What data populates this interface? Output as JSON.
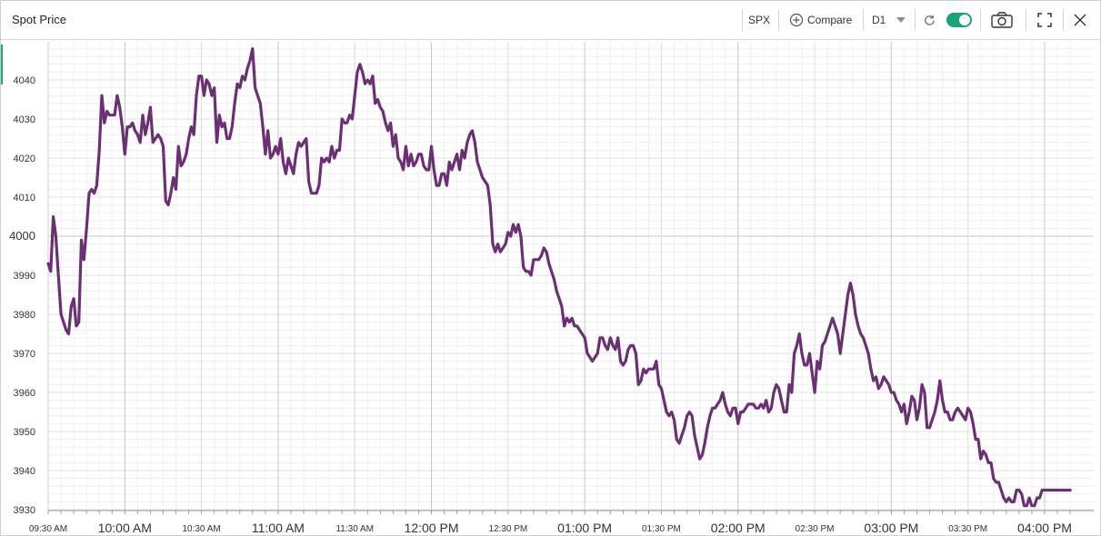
{
  "header": {
    "title": "Spot Price",
    "symbol": "SPX",
    "compare_label": "Compare",
    "period_label": "D1",
    "accent_color": "#1aa37a"
  },
  "icons": [
    "plus-circle-icon",
    "chevron-down-icon",
    "refresh-icon",
    "toggle-switch",
    "camera-icon",
    "expand-icon",
    "close-icon"
  ],
  "chart_data": {
    "type": "line",
    "title": "",
    "xlabel": "",
    "ylabel": "",
    "ylim": [
      3930,
      4048
    ],
    "xlim_minutes": [
      570,
      960
    ],
    "grid": true,
    "line_color": "#6b2f73",
    "y_ticks": [
      {
        "value": 4040,
        "label": "4040",
        "major": false
      },
      {
        "value": 4030,
        "label": "4030",
        "major": false
      },
      {
        "value": 4020,
        "label": "4020",
        "major": false
      },
      {
        "value": 4010,
        "label": "4010",
        "major": false
      },
      {
        "value": 4000,
        "label": "4000",
        "major": true
      },
      {
        "value": 3990,
        "label": "3990",
        "major": false
      },
      {
        "value": 3980,
        "label": "3980",
        "major": false
      },
      {
        "value": 3970,
        "label": "3970",
        "major": false
      },
      {
        "value": 3960,
        "label": "3960",
        "major": false
      },
      {
        "value": 3950,
        "label": "3950",
        "major": false
      },
      {
        "value": 3940,
        "label": "3940",
        "major": false
      },
      {
        "value": 3930,
        "label": "3930",
        "major": false
      }
    ],
    "x_ticks": [
      {
        "t": 570,
        "label": "09:30 AM",
        "major": false
      },
      {
        "t": 600,
        "label": "10:00 AM",
        "major": true
      },
      {
        "t": 630,
        "label": "10:30 AM",
        "major": false
      },
      {
        "t": 660,
        "label": "11:00 AM",
        "major": true
      },
      {
        "t": 690,
        "label": "11:30 AM",
        "major": false
      },
      {
        "t": 720,
        "label": "12:00 PM",
        "major": true
      },
      {
        "t": 750,
        "label": "12:30 PM",
        "major": false
      },
      {
        "t": 780,
        "label": "01:00 PM",
        "major": true
      },
      {
        "t": 810,
        "label": "01:30 PM",
        "major": false
      },
      {
        "t": 840,
        "label": "02:00 PM",
        "major": true
      },
      {
        "t": 870,
        "label": "02:30 PM",
        "major": false
      },
      {
        "t": 900,
        "label": "03:00 PM",
        "major": true
      },
      {
        "t": 930,
        "label": "03:30 PM",
        "major": false
      },
      {
        "t": 960,
        "label": "04:00 PM",
        "major": true
      }
    ],
    "series": [
      {
        "x": [
          570,
          571,
          572,
          573,
          574,
          575,
          576,
          577,
          578,
          579,
          580,
          581,
          582,
          583,
          584,
          585,
          586,
          587,
          588,
          589,
          590,
          591,
          592,
          593,
          594,
          595,
          596,
          597,
          598,
          599,
          600,
          601,
          602,
          603,
          604,
          605,
          606,
          607,
          608,
          609,
          610,
          611,
          612,
          613,
          614,
          615,
          616,
          617,
          618,
          619,
          620,
          621,
          622,
          623,
          624,
          625,
          626,
          627,
          628,
          629,
          630,
          631,
          632,
          633,
          634,
          635,
          636,
          637,
          638,
          639,
          640,
          641,
          642,
          643,
          644,
          645,
          646,
          647,
          648,
          649,
          650,
          651,
          652,
          653,
          654,
          655,
          656,
          657,
          658,
          659,
          660,
          661,
          662,
          663,
          664,
          665,
          666,
          667,
          668,
          669,
          670,
          671,
          672,
          673,
          674,
          675,
          676,
          677,
          678,
          679,
          680,
          681,
          682,
          683,
          684,
          685,
          686,
          687,
          688,
          689,
          690,
          691,
          692,
          693,
          694,
          695,
          696,
          697,
          698,
          699,
          700,
          701,
          702,
          703,
          704,
          705,
          706,
          707,
          708,
          709,
          710,
          711,
          712,
          713,
          714,
          715,
          716,
          717,
          718,
          719,
          720,
          721,
          722,
          723,
          724,
          725,
          726,
          727,
          728,
          729,
          730,
          731,
          732,
          733,
          734,
          735,
          736,
          737,
          738,
          739,
          740,
          741,
          742,
          743,
          744,
          745,
          746,
          747,
          748,
          749,
          750,
          751,
          752,
          753,
          754,
          755,
          756,
          757,
          758,
          759,
          760,
          761,
          762,
          763,
          764,
          765,
          766,
          767,
          768,
          769,
          770,
          771,
          772,
          773,
          774,
          775,
          776,
          777,
          778,
          779,
          780,
          781,
          782,
          783,
          784,
          785,
          786,
          787,
          788,
          789,
          790,
          791,
          792,
          793,
          794,
          795,
          796,
          797,
          798,
          799,
          800,
          801,
          802,
          803,
          804,
          805,
          806,
          807,
          808,
          809,
          810,
          811,
          812,
          813,
          814,
          815,
          816,
          817,
          818,
          819,
          820,
          821,
          822,
          823,
          824,
          825,
          826,
          827,
          828,
          829,
          830,
          831,
          832,
          833,
          834,
          835,
          836,
          837,
          838,
          839,
          840,
          841,
          842,
          843,
          844,
          845,
          846,
          847,
          848,
          849,
          850,
          851,
          852,
          853,
          854,
          855,
          856,
          857,
          858,
          859,
          860,
          861,
          862,
          863,
          864,
          865,
          866,
          867,
          868,
          869,
          870,
          871,
          872,
          873,
          874,
          875,
          876,
          877,
          878,
          879,
          880,
          881,
          882,
          883,
          884,
          885,
          886,
          887,
          888,
          889,
          890,
          891,
          892,
          893,
          894,
          895,
          896,
          897,
          898,
          899,
          900,
          901,
          902,
          903,
          904,
          905,
          906,
          907,
          908,
          909,
          910,
          911,
          912,
          913,
          914,
          915,
          916,
          917,
          918,
          919,
          920,
          921,
          922,
          923,
          924,
          925,
          926,
          927,
          928,
          929,
          930,
          931,
          932,
          933,
          934,
          935,
          936,
          937,
          938,
          939,
          940,
          941,
          942,
          943,
          944,
          945,
          946,
          947,
          948,
          949,
          950,
          951,
          952,
          953,
          954,
          955,
          956,
          957,
          958,
          959,
          960,
          961,
          962,
          963,
          964,
          965,
          966,
          967,
          968,
          969,
          970
        ],
        "values": [
          3993,
          3991,
          4005,
          4000,
          3990,
          3980,
          3978,
          3976,
          3975,
          3982,
          3984,
          3977,
          3978,
          3999,
          3994,
          4002,
          4011,
          4012,
          4011,
          4013,
          4022,
          4036,
          4029,
          4032,
          4031,
          4031,
          4031,
          4036,
          4033,
          4028,
          4021,
          4028,
          4028,
          4029,
          4027,
          4026,
          4024,
          4031,
          4026,
          4029,
          4033,
          4024,
          4025,
          4026,
          4025,
          4023,
          4009,
          4008,
          4011,
          4015,
          4012,
          4023,
          4018,
          4019,
          4021,
          4025,
          4028,
          4026,
          4036,
          4041,
          4041,
          4036,
          4040,
          4039,
          4036,
          4038,
          4024,
          4031,
          4028,
          4029,
          4025,
          4025,
          4028,
          4034,
          4039,
          4038,
          4041,
          4040,
          4043,
          4045,
          4048,
          4038,
          4036,
          4034,
          4028,
          4021,
          4027,
          4020,
          4021,
          4023,
          4021,
          4025,
          4019,
          4016,
          4020,
          4018,
          4016,
          4021,
          4024,
          4023,
          4024,
          4025,
          4014,
          4011,
          4011,
          4011,
          4013,
          4020,
          4019,
          4020,
          4019,
          4023,
          4020,
          4022,
          4022,
          4030,
          4029,
          4029,
          4031,
          4030,
          4036,
          4042,
          4044,
          4042,
          4039,
          4040,
          4039,
          4041,
          4034,
          4035,
          4033,
          4032,
          4029,
          4027,
          4029,
          4023,
          4026,
          4020,
          4019,
          4017,
          4023,
          4018,
          4021,
          4018,
          4019,
          4021,
          4021,
          4018,
          4017,
          4017,
          4023,
          4017,
          4013,
          4013,
          4016,
          4016,
          4013,
          4019,
          4017,
          4019,
          4021,
          4017,
          4022,
          4020,
          4024,
          4026,
          4027,
          4024,
          4019,
          4017,
          4015,
          4014,
          4013,
          4008,
          3998,
          3996,
          3998,
          3996,
          3997,
          3998,
          4001,
          4000,
          4003,
          4001,
          4003,
          4000,
          3992,
          3991,
          3991,
          3990,
          3994,
          3994,
          3994,
          3995,
          3997,
          3996,
          3993,
          3991,
          3989,
          3986,
          3984,
          3982,
          3977,
          3979,
          3978,
          3979,
          3977,
          3977,
          3976,
          3975,
          3974,
          3970,
          3969,
          3968,
          3969,
          3970,
          3974,
          3974,
          3972,
          3971,
          3974,
          3972,
          3971,
          3974,
          3968,
          3967,
          3968,
          3971,
          3972,
          3972,
          3970,
          3962,
          3963,
          3966,
          3965,
          3966,
          3966,
          3966,
          3968,
          3962,
          3961,
          3958,
          3955,
          3954,
          3955,
          3953,
          3948,
          3947,
          3949,
          3951,
          3954,
          3955,
          3954,
          3949,
          3946,
          3943,
          3944,
          3947,
          3951,
          3954,
          3956,
          3956,
          3957,
          3958,
          3960,
          3957,
          3955,
          3954,
          3956,
          3956,
          3952,
          3955,
          3955,
          3956,
          3957,
          3957,
          3957,
          3956,
          3956,
          3957,
          3956,
          3958,
          3955,
          3956,
          3960,
          3962,
          3961,
          3958,
          3955,
          3955,
          3962,
          3960,
          3970,
          3972,
          3975,
          3970,
          3967,
          3967,
          3970,
          3965,
          3960,
          3968,
          3966,
          3972,
          3973,
          3975,
          3977,
          3979,
          3977,
          3975,
          3970,
          3975,
          3980,
          3985,
          3988,
          3985,
          3980,
          3977,
          3975,
          3974,
          3972,
          3970,
          3966,
          3963,
          3964,
          3961,
          3962,
          3964,
          3963,
          3962,
          3960,
          3960,
          3958,
          3957,
          3955,
          3957,
          3952,
          3955,
          3959,
          3958,
          3953,
          3956,
          3962,
          3960,
          3951,
          3951,
          3953,
          3955,
          3958,
          3963,
          3958,
          3955,
          3955,
          3953,
          3953,
          3955,
          3956,
          3955,
          3954,
          3953,
          3956,
          3955,
          3952,
          3948,
          3948,
          3943,
          3945,
          3944,
          3942,
          3942,
          3938,
          3937,
          3937,
          3935,
          3933,
          3932,
          3933,
          3932,
          3932,
          3935,
          3935,
          3934,
          3931,
          3931,
          3933,
          3931,
          3931,
          3933,
          3933,
          3935,
          3935,
          3935,
          3935,
          3935,
          3935,
          3935,
          3935,
          3935,
          3935,
          3935,
          3935
        ]
      }
    ]
  }
}
